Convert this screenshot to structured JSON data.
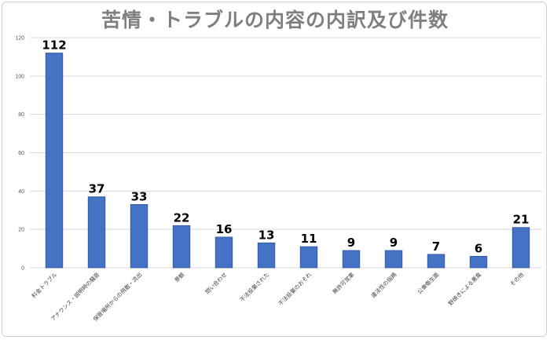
{
  "chart_data": {
    "type": "bar",
    "title": "苦情・トラブルの内容の内訳及び件数",
    "categories": [
      "料金トラブル",
      "アナウンス・説明時の騒音",
      "保管場所からの飛散・流出",
      "景観",
      "問い合わせ",
      "不法投棄された",
      "不法投棄のおそれ",
      "無許可営業",
      "違法性の指摘",
      "公衆衛生面",
      "野焼きによる悪臭",
      "その他"
    ],
    "values": [
      112,
      37,
      33,
      22,
      16,
      13,
      11,
      9,
      9,
      7,
      6,
      21
    ],
    "yticks": [
      0,
      20,
      40,
      60,
      80,
      100,
      120
    ],
    "ylim": [
      0,
      120
    ],
    "grid": true,
    "legend": "none",
    "bar_color": "#4472c4",
    "bar_edge_color": "#2f5597"
  }
}
